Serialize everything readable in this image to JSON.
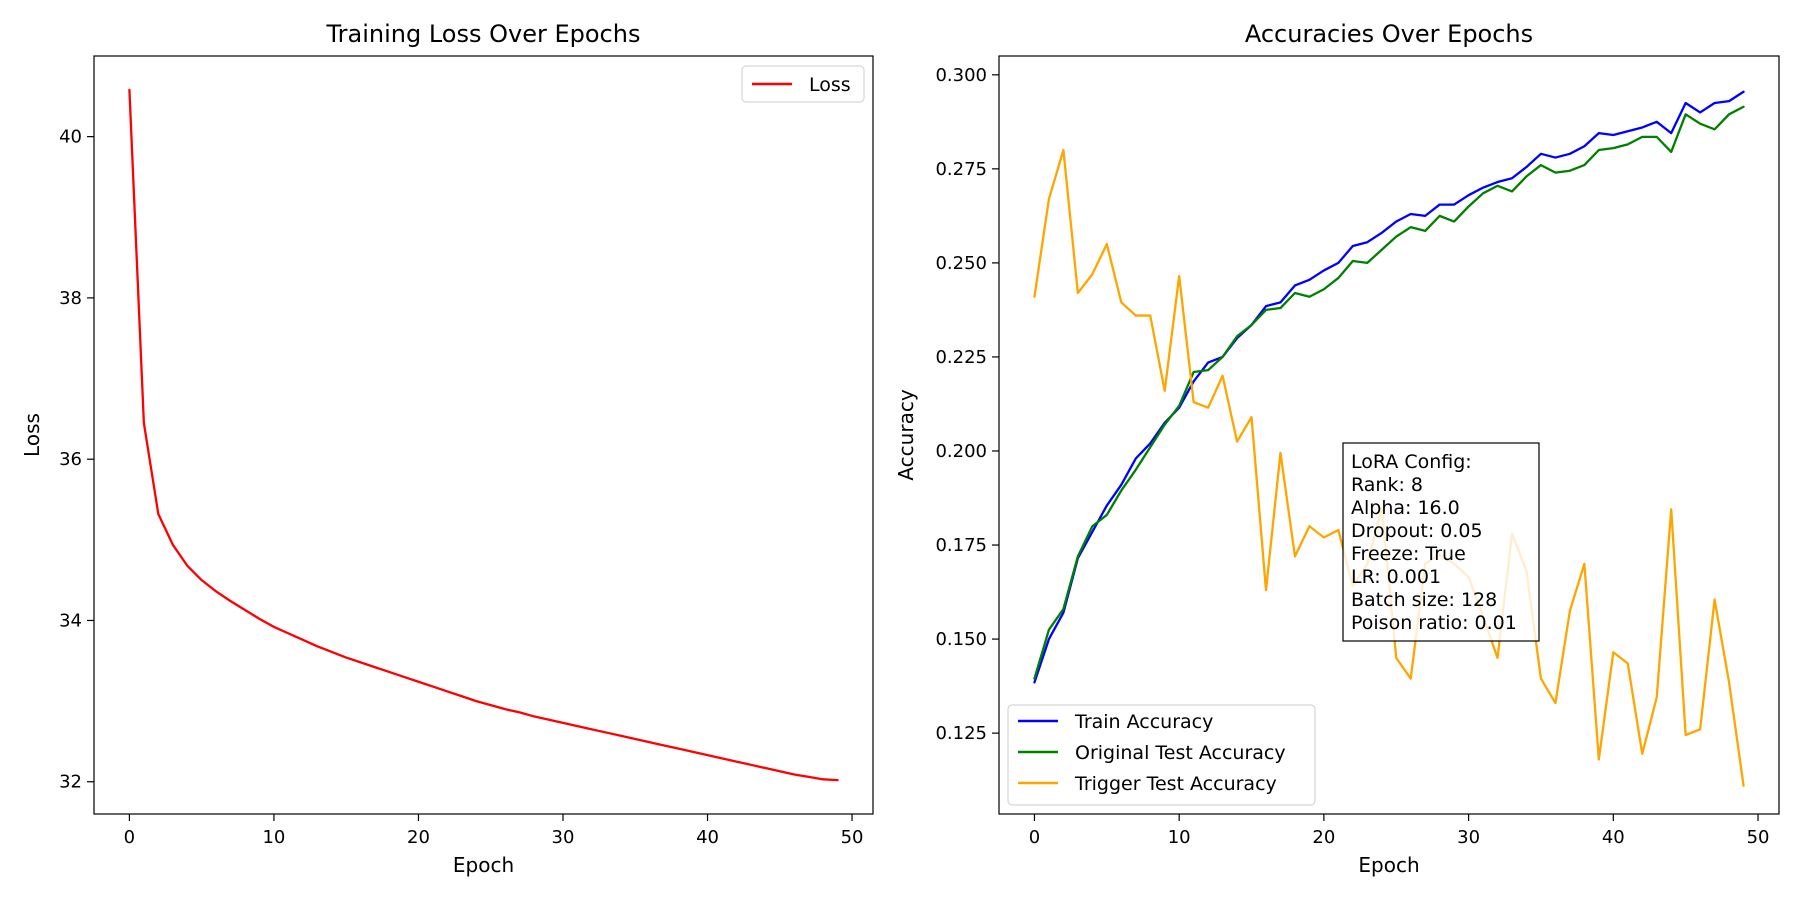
{
  "chart_data": [
    {
      "type": "line",
      "title": "Training Loss Over Epochs",
      "xlabel": "Epoch",
      "ylabel": "Loss",
      "xlim": [
        -2.45,
        51.45
      ],
      "ylim": [
        31.6,
        41.0
      ],
      "xticks": [
        0,
        10,
        20,
        30,
        40,
        50
      ],
      "yticks": [
        32,
        34,
        36,
        38,
        40
      ],
      "grid": false,
      "legend_position": "top-right",
      "series": [
        {
          "name": "Loss",
          "color": "#ff0000",
          "x": [
            0,
            1,
            2,
            3,
            4,
            5,
            6,
            7,
            8,
            9,
            10,
            11,
            12,
            13,
            14,
            15,
            16,
            17,
            18,
            19,
            20,
            21,
            22,
            23,
            24,
            25,
            26,
            27,
            28,
            29,
            30,
            31,
            32,
            33,
            34,
            35,
            36,
            37,
            38,
            39,
            40,
            41,
            42,
            43,
            44,
            45,
            46,
            47,
            48,
            49
          ],
          "values": [
            40.58,
            36.45,
            35.32,
            34.94,
            34.68,
            34.5,
            34.36,
            34.24,
            34.13,
            34.02,
            33.92,
            33.84,
            33.76,
            33.68,
            33.61,
            33.54,
            33.48,
            33.42,
            33.36,
            33.3,
            33.24,
            33.18,
            33.12,
            33.06,
            33.0,
            32.95,
            32.9,
            32.86,
            32.81,
            32.77,
            32.73,
            32.69,
            32.65,
            32.61,
            32.57,
            32.53,
            32.49,
            32.45,
            32.41,
            32.37,
            32.33,
            32.29,
            32.25,
            32.21,
            32.17,
            32.13,
            32.09,
            32.06,
            32.03,
            32.02
          ]
        }
      ]
    },
    {
      "type": "line",
      "title": "Accuracies Over Epochs",
      "xlabel": "Epoch",
      "ylabel": "Accuracy",
      "xlim": [
        -2.45,
        51.45
      ],
      "ylim": [
        0.1035,
        0.305
      ],
      "xticks": [
        0,
        10,
        20,
        30,
        40,
        50
      ],
      "yticks": [
        0.125,
        0.15,
        0.175,
        0.2,
        0.225,
        0.25,
        0.275,
        0.3
      ],
      "ytick_labels": [
        "0.125",
        "0.150",
        "0.175",
        "0.200",
        "0.225",
        "0.250",
        "0.275",
        "0.300"
      ],
      "grid": false,
      "legend_position": "lower-left",
      "series": [
        {
          "name": "Train Accuracy",
          "color": "#0000ff",
          "x": [
            0,
            1,
            2,
            3,
            4,
            5,
            6,
            7,
            8,
            9,
            10,
            11,
            12,
            13,
            14,
            15,
            16,
            17,
            18,
            19,
            20,
            21,
            22,
            23,
            24,
            25,
            26,
            27,
            28,
            29,
            30,
            31,
            32,
            33,
            34,
            35,
            36,
            37,
            38,
            39,
            40,
            41,
            42,
            43,
            44,
            45,
            46,
            47,
            48,
            49
          ],
          "values": [
            0.1385,
            0.15,
            0.157,
            0.1715,
            0.1785,
            0.1855,
            0.191,
            0.198,
            0.202,
            0.2075,
            0.2115,
            0.2185,
            0.2235,
            0.225,
            0.23,
            0.2335,
            0.2385,
            0.2395,
            0.244,
            0.2455,
            0.248,
            0.25,
            0.2545,
            0.2555,
            0.258,
            0.261,
            0.263,
            0.2625,
            0.2655,
            0.2655,
            0.268,
            0.27,
            0.2715,
            0.2725,
            0.2755,
            0.279,
            0.278,
            0.279,
            0.281,
            0.2845,
            0.284,
            0.285,
            0.286,
            0.2875,
            0.2845,
            0.2925,
            0.29,
            0.2925,
            0.293,
            0.2955
          ]
        },
        {
          "name": "Original Test Accuracy",
          "color": "#008000",
          "x": [
            0,
            1,
            2,
            3,
            4,
            5,
            6,
            7,
            8,
            9,
            10,
            11,
            12,
            13,
            14,
            15,
            16,
            17,
            18,
            19,
            20,
            21,
            22,
            23,
            24,
            25,
            26,
            27,
            28,
            29,
            30,
            31,
            32,
            33,
            34,
            35,
            36,
            37,
            38,
            39,
            40,
            41,
            42,
            43,
            44,
            45,
            46,
            47,
            48,
            49
          ],
          "values": [
            0.1395,
            0.1525,
            0.158,
            0.172,
            0.18,
            0.183,
            0.1895,
            0.195,
            0.201,
            0.207,
            0.212,
            0.221,
            0.2215,
            0.225,
            0.2305,
            0.2335,
            0.2375,
            0.238,
            0.242,
            0.241,
            0.243,
            0.246,
            0.2505,
            0.25,
            0.2535,
            0.257,
            0.2595,
            0.2585,
            0.2625,
            0.261,
            0.265,
            0.2685,
            0.2705,
            0.269,
            0.273,
            0.276,
            0.274,
            0.2745,
            0.276,
            0.28,
            0.2805,
            0.2815,
            0.2835,
            0.2835,
            0.2795,
            0.2895,
            0.287,
            0.2855,
            0.2895,
            0.2915
          ]
        },
        {
          "name": "Trigger Test Accuracy",
          "color": "#ffa500",
          "x": [
            0,
            1,
            2,
            3,
            4,
            5,
            6,
            7,
            8,
            9,
            10,
            11,
            12,
            13,
            14,
            15,
            16,
            17,
            18,
            19,
            20,
            21,
            22,
            23,
            24,
            25,
            26,
            27,
            28,
            29,
            30,
            31,
            32,
            33,
            34,
            35,
            36,
            37,
            38,
            39,
            40,
            41,
            42,
            43,
            44,
            45,
            46,
            47,
            48,
            49
          ],
          "values": [
            0.241,
            0.267,
            0.28,
            0.242,
            0.247,
            0.255,
            0.2395,
            0.236,
            0.236,
            0.216,
            0.2465,
            0.213,
            0.2115,
            0.22,
            0.2025,
            0.209,
            0.163,
            0.1995,
            0.172,
            0.18,
            0.177,
            0.179,
            0.164,
            0.17,
            0.185,
            0.145,
            0.1395,
            0.17,
            0.1725,
            0.17,
            0.1665,
            0.156,
            0.145,
            0.178,
            0.168,
            0.1395,
            0.133,
            0.1575,
            0.17,
            0.118,
            0.1465,
            0.1435,
            0.1195,
            0.1345,
            0.1845,
            0.1245,
            0.126,
            0.1605,
            0.1385,
            0.111
          ]
        }
      ],
      "annotation": {
        "lines": [
          "LoRA Config:",
          "Rank: 8",
          "Alpha: 16.0",
          "Dropout: 0.05",
          "Freeze: True",
          "LR: 0.001",
          "Batch size: 128",
          "Poison ratio: 0.01"
        ]
      }
    }
  ]
}
